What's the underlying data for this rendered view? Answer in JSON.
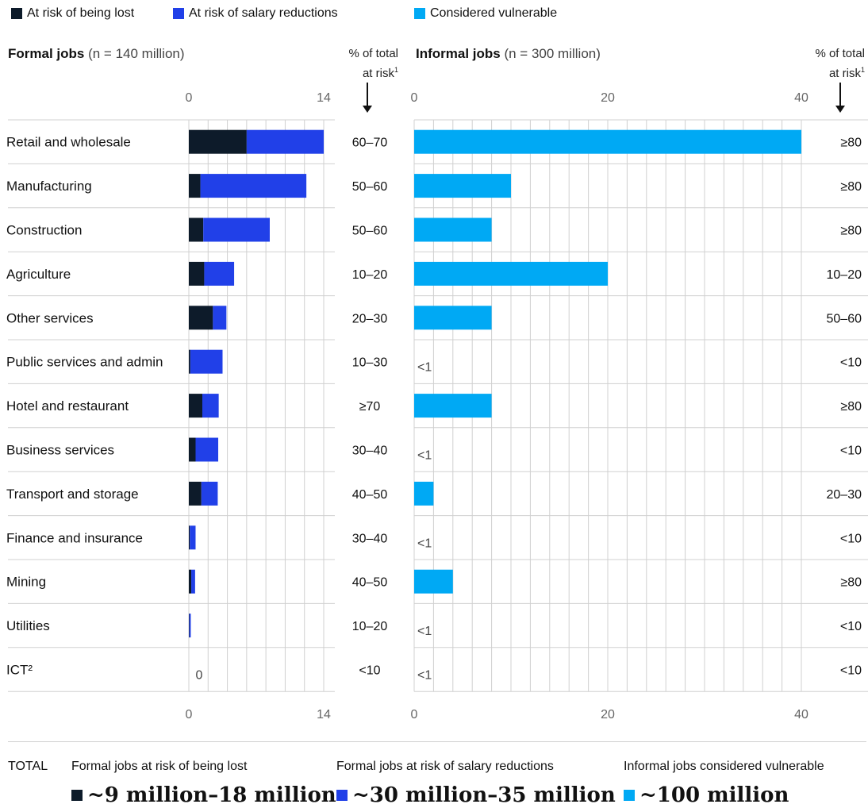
{
  "colors": {
    "lost": "#0d1b2a",
    "salary": "#2140e8",
    "vulnerable": "#00a9f4",
    "grid": "#d0d0d0",
    "tick": "#666666"
  },
  "legend": [
    {
      "label": "At risk of being lost",
      "color": "#0d1b2a"
    },
    {
      "label": "At risk of salary reductions",
      "color": "#2140e8"
    },
    {
      "label": "Considered vulnerable",
      "color": "#00a9f4"
    }
  ],
  "formal": {
    "title": "Formal jobs",
    "n": "(n = 140 million)",
    "pct_head_line1": "% of total",
    "pct_head_line2": "at risk",
    "pct_head_sup": "1"
  },
  "informal": {
    "title": "Informal jobs",
    "n": "(n = 300 million)",
    "pct_head_line1": "% of total",
    "pct_head_line2": "at risk",
    "pct_head_sup": "1"
  },
  "chart_data": [
    {
      "type": "bar",
      "orientation": "horizontal",
      "stacked": true,
      "title": "Formal jobs (n = 140 million)",
      "xlim": [
        0,
        14
      ],
      "xticks": [
        "0",
        "14"
      ],
      "grid": true,
      "categories": [
        "Retail and wholesale",
        "Manufacturing",
        "Construction",
        "Agriculture",
        "Other services",
        "Public services and admin",
        "Hotel and restaurant",
        "Business services",
        "Transport and storage",
        "Finance and insurance",
        "Mining",
        "Utilities",
        "ICT²"
      ],
      "series": [
        {
          "name": "At risk of being lost",
          "values": [
            6.0,
            1.2,
            1.5,
            1.6,
            2.5,
            0.15,
            1.4,
            0.7,
            1.3,
            0.1,
            0.25,
            0.05,
            0
          ]
        },
        {
          "name": "At risk of salary reductions",
          "values": [
            8.0,
            11.0,
            6.9,
            3.1,
            1.4,
            3.35,
            1.7,
            2.35,
            1.7,
            0.6,
            0.4,
            0.15,
            0
          ]
        }
      ],
      "zero_labels": [
        "",
        "",
        "",
        "",
        "",
        "",
        "",
        "",
        "",
        "",
        "",
        "",
        "0"
      ],
      "pct_of_total_at_risk": [
        "60–70",
        "50–60",
        "50–60",
        "10–20",
        "20–30",
        "10–30",
        "≥70",
        "30–40",
        "40–50",
        "30–40",
        "40–50",
        "10–20",
        "<10"
      ]
    },
    {
      "type": "bar",
      "orientation": "horizontal",
      "title": "Informal jobs (n = 300 million)",
      "xlim": [
        0,
        40
      ],
      "xticks": [
        "0",
        "20",
        "40"
      ],
      "grid": true,
      "categories": [
        "Retail and wholesale",
        "Manufacturing",
        "Construction",
        "Agriculture",
        "Other services",
        "Public services and admin",
        "Hotel and restaurant",
        "Business services",
        "Transport and storage",
        "Finance and insurance",
        "Mining",
        "Utilities",
        "ICT²"
      ],
      "series": [
        {
          "name": "Considered vulnerable",
          "values": [
            40,
            10,
            8,
            20,
            8,
            0,
            8,
            0,
            2,
            0,
            4,
            0,
            0
          ]
        }
      ],
      "small_labels": [
        "",
        "",
        "",
        "",
        "",
        "<1",
        "",
        "<1",
        "",
        "<1",
        "",
        "<1",
        "<1"
      ],
      "pct_of_total_at_risk": [
        "≥80",
        "≥80",
        "≥80",
        "10–20",
        "50–60",
        "<10",
        "≥80",
        "<10",
        "20–30",
        "<10",
        "≥80",
        "<10",
        "<10"
      ]
    }
  ],
  "totals": {
    "label": "TOTAL",
    "items": [
      {
        "caption": "Formal jobs at risk of being lost",
        "value": "~9 million–18 million",
        "color": "#0d1b2a"
      },
      {
        "caption": "Formal jobs at risk of salary reductions",
        "value": "~30 million–35 million",
        "color": "#2140e8"
      },
      {
        "caption": "Informal jobs considered vulnerable",
        "value": "~100 million",
        "color": "#00a9f4"
      }
    ]
  }
}
